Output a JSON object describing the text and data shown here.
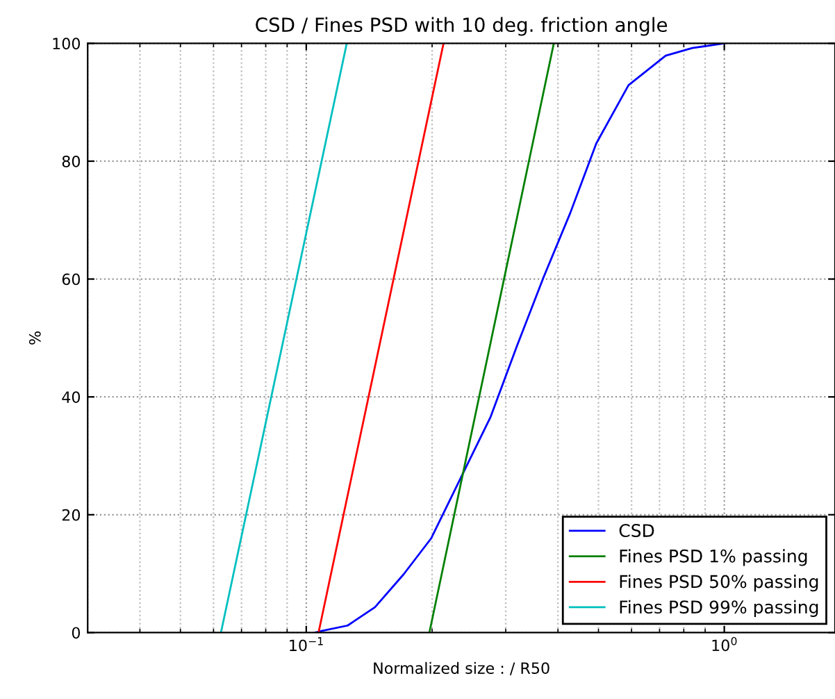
{
  "chart_data": {
    "type": "line",
    "title": "CSD / Fines PSD with 10 deg. friction angle",
    "xlabel": "Normalized size : / R50",
    "ylabel": "%",
    "log": "x",
    "xlim": [
      0.03,
      1.84
    ],
    "xticks": [
      {
        "value": 0.1,
        "label": "10$^{−1}$"
      },
      {
        "value": 1,
        "label": "10$^{0}$"
      }
    ],
    "ylim": [
      0,
      100
    ],
    "yticks": [
      0,
      20,
      40,
      60,
      80,
      100
    ],
    "grid": true,
    "legend": "bottom right",
    "series": [
      {
        "name": "CSD",
        "color": "#0000ff",
        "x": [
          0.105,
          0.1077,
          0.1256,
          0.146,
          0.171,
          0.199,
          0.237,
          0.276,
          0.319,
          0.37,
          0.428,
          0.494,
          0.59,
          0.724,
          0.838,
          1.0
        ],
        "values": [
          0,
          0.2,
          1.2,
          4.3,
          9.9,
          16,
          27,
          36.6,
          48.6,
          60.4,
          71.2,
          83,
          92.9,
          97.9,
          99.2,
          100
        ]
      },
      {
        "name": "Fines PSD 1% passing",
        "color": "#008000",
        "x": [
          0.197,
          0.391
        ],
        "values": [
          0,
          100
        ]
      },
      {
        "name": "Fines PSD 50% passing",
        "color": "#ff0000",
        "x": [
          0.107,
          0.213
        ],
        "values": [
          0,
          100
        ]
      },
      {
        "name": "Fines PSD 99% passing",
        "color": "#00bfbf",
        "x": [
          0.0625,
          0.125
        ],
        "values": [
          0,
          100
        ]
      }
    ]
  }
}
